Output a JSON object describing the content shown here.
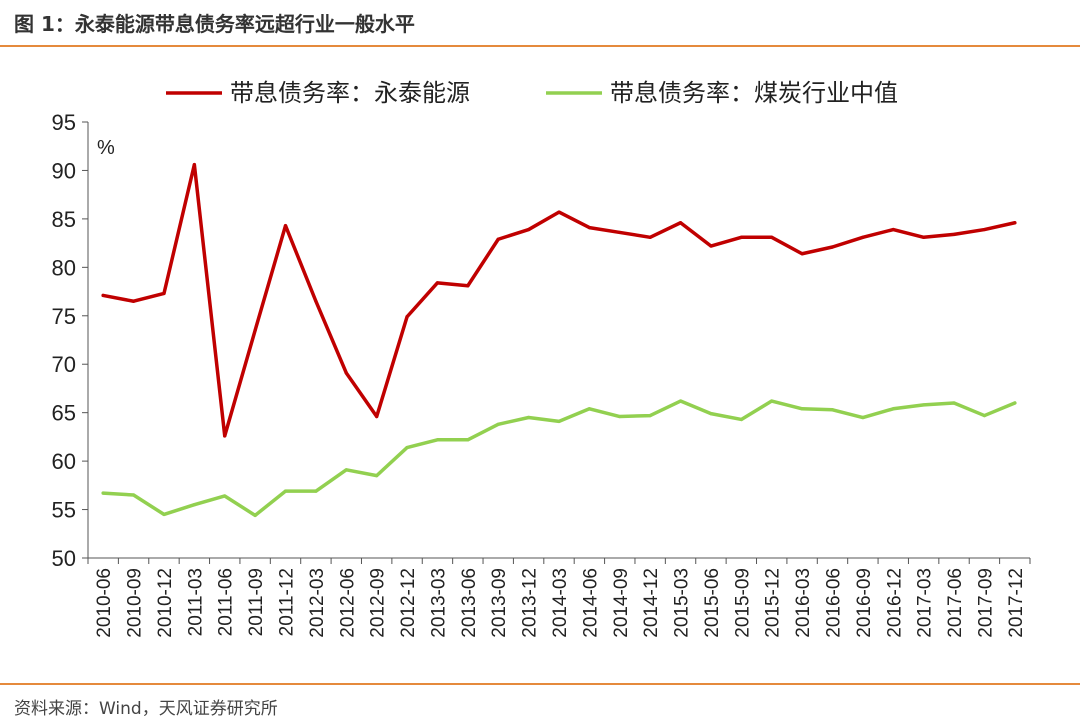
{
  "figure": {
    "title": "图 1：永泰能源带息债务率远超行业一般水平",
    "source": "资料来源：Wind，天风证券研究所"
  },
  "colors": {
    "accent_rule": "#e58a3c"
  },
  "chart_data": {
    "type": "line",
    "title": "",
    "xlabel": "",
    "ylabel": "",
    "unit": "%",
    "ylim": [
      50,
      95
    ],
    "yticks": [
      50,
      55,
      60,
      65,
      70,
      75,
      80,
      85,
      90,
      95
    ],
    "grid": false,
    "legend_position": "top",
    "categories": [
      "2010-06",
      "2010-09",
      "2010-12",
      "2011-03",
      "2011-06",
      "2011-09",
      "2011-12",
      "2012-03",
      "2012-06",
      "2012-09",
      "2012-12",
      "2013-03",
      "2013-06",
      "2013-09",
      "2013-12",
      "2014-03",
      "2014-06",
      "2014-09",
      "2014-12",
      "2015-03",
      "2015-06",
      "2015-09",
      "2015-12",
      "2016-03",
      "2016-06",
      "2016-09",
      "2016-12",
      "2017-03",
      "2017-06",
      "2017-09",
      "2017-12"
    ],
    "series": [
      {
        "name": "带息债务率：永泰能源",
        "color": "#c00000",
        "values": [
          77.1,
          76.5,
          77.3,
          90.6,
          62.6,
          73.5,
          84.3,
          76.5,
          69.1,
          64.6,
          74.9,
          78.4,
          78.1,
          82.9,
          83.9,
          85.7,
          84.1,
          83.6,
          83.1,
          84.6,
          82.2,
          83.1,
          83.1,
          81.4,
          82.1,
          83.1,
          83.9,
          83.1,
          83.4,
          83.9,
          84.6
        ]
      },
      {
        "name": "带息债务率：煤炭行业中值",
        "color": "#92d050",
        "values": [
          56.7,
          56.5,
          54.5,
          55.5,
          56.4,
          54.4,
          56.9,
          56.9,
          59.1,
          58.5,
          61.4,
          62.2,
          62.2,
          63.8,
          64.5,
          64.1,
          65.4,
          64.6,
          64.7,
          66.2,
          64.9,
          64.3,
          66.2,
          65.4,
          65.3,
          64.5,
          65.4,
          65.8,
          66.0,
          64.7,
          66.0
        ]
      }
    ]
  }
}
